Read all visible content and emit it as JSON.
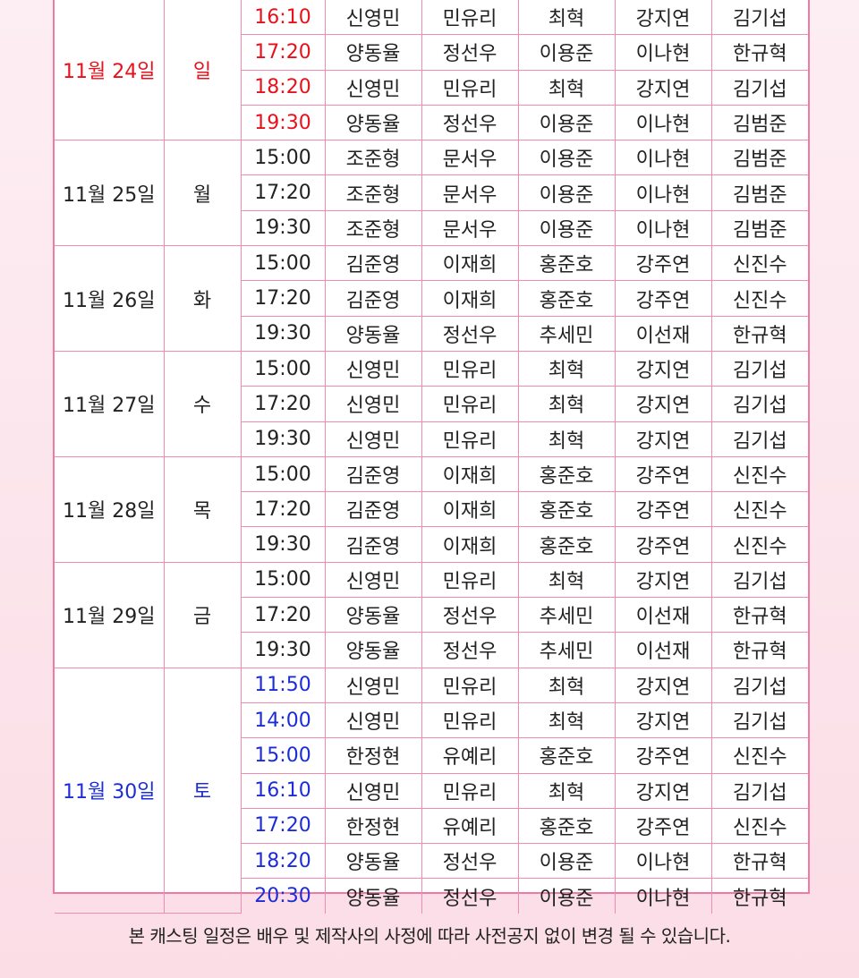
{
  "notice": "본 캐스팅 일정은 배우 및 제작사의 사정에 따라 사전공지 없이 변경 될 수 있습니다.",
  "colors": {
    "weekend_sun": "#e8111b",
    "weekend_sat": "#1c2cd8",
    "border": "#f28bb2"
  },
  "days": [
    {
      "date": "11월 24일",
      "day": "일",
      "tone": "red",
      "shows": [
        {
          "time": "16:10",
          "cast": [
            "신영민",
            "민유리",
            "최혁",
            "강지연",
            "김기섭"
          ]
        },
        {
          "time": "17:20",
          "cast": [
            "양동율",
            "정선우",
            "이용준",
            "이나현",
            "한규혁"
          ]
        },
        {
          "time": "18:20",
          "cast": [
            "신영민",
            "민유리",
            "최혁",
            "강지연",
            "김기섭"
          ]
        },
        {
          "time": "19:30",
          "cast": [
            "양동율",
            "정선우",
            "이용준",
            "이나현",
            "김범준"
          ]
        }
      ]
    },
    {
      "date": "11월 25일",
      "day": "월",
      "tone": "",
      "shows": [
        {
          "time": "15:00",
          "cast": [
            "조준형",
            "문서우",
            "이용준",
            "이나현",
            "김범준"
          ]
        },
        {
          "time": "17:20",
          "cast": [
            "조준형",
            "문서우",
            "이용준",
            "이나현",
            "김범준"
          ]
        },
        {
          "time": "19:30",
          "cast": [
            "조준형",
            "문서우",
            "이용준",
            "이나현",
            "김범준"
          ]
        }
      ]
    },
    {
      "date": "11월 26일",
      "day": "화",
      "tone": "",
      "shows": [
        {
          "time": "15:00",
          "cast": [
            "김준영",
            "이재희",
            "홍준호",
            "강주연",
            "신진수"
          ]
        },
        {
          "time": "17:20",
          "cast": [
            "김준영",
            "이재희",
            "홍준호",
            "강주연",
            "신진수"
          ]
        },
        {
          "time": "19:30",
          "cast": [
            "양동율",
            "정선우",
            "추세민",
            "이선재",
            "한규혁"
          ]
        }
      ]
    },
    {
      "date": "11월 27일",
      "day": "수",
      "tone": "",
      "shows": [
        {
          "time": "15:00",
          "cast": [
            "신영민",
            "민유리",
            "최혁",
            "강지연",
            "김기섭"
          ]
        },
        {
          "time": "17:20",
          "cast": [
            "신영민",
            "민유리",
            "최혁",
            "강지연",
            "김기섭"
          ]
        },
        {
          "time": "19:30",
          "cast": [
            "신영민",
            "민유리",
            "최혁",
            "강지연",
            "김기섭"
          ]
        }
      ]
    },
    {
      "date": "11월 28일",
      "day": "목",
      "tone": "",
      "shows": [
        {
          "time": "15:00",
          "cast": [
            "김준영",
            "이재희",
            "홍준호",
            "강주연",
            "신진수"
          ]
        },
        {
          "time": "17:20",
          "cast": [
            "김준영",
            "이재희",
            "홍준호",
            "강주연",
            "신진수"
          ]
        },
        {
          "time": "19:30",
          "cast": [
            "김준영",
            "이재희",
            "홍준호",
            "강주연",
            "신진수"
          ]
        }
      ]
    },
    {
      "date": "11월 29일",
      "day": "금",
      "tone": "",
      "shows": [
        {
          "time": "15:00",
          "cast": [
            "신영민",
            "민유리",
            "최혁",
            "강지연",
            "김기섭"
          ]
        },
        {
          "time": "17:20",
          "cast": [
            "양동율",
            "정선우",
            "추세민",
            "이선재",
            "한규혁"
          ]
        },
        {
          "time": "19:30",
          "cast": [
            "양동율",
            "정선우",
            "추세민",
            "이선재",
            "한규혁"
          ]
        }
      ]
    },
    {
      "date": "11월 30일",
      "day": "토",
      "tone": "blue",
      "shows": [
        {
          "time": "11:50",
          "cast": [
            "신영민",
            "민유리",
            "최혁",
            "강지연",
            "김기섭"
          ]
        },
        {
          "time": "14:00",
          "cast": [
            "신영민",
            "민유리",
            "최혁",
            "강지연",
            "김기섭"
          ]
        },
        {
          "time": "15:00",
          "cast": [
            "한정현",
            "유예리",
            "홍준호",
            "강주연",
            "신진수"
          ]
        },
        {
          "time": "16:10",
          "cast": [
            "신영민",
            "민유리",
            "최혁",
            "강지연",
            "김기섭"
          ]
        },
        {
          "time": "17:20",
          "cast": [
            "한정현",
            "유예리",
            "홍준호",
            "강주연",
            "신진수"
          ]
        },
        {
          "time": "18:20",
          "cast": [
            "양동율",
            "정선우",
            "이용준",
            "이나현",
            "한규혁"
          ]
        },
        {
          "time": "20:30",
          "cast": [
            "양동율",
            "정선우",
            "이용준",
            "이나현",
            "한규혁"
          ]
        }
      ]
    }
  ]
}
